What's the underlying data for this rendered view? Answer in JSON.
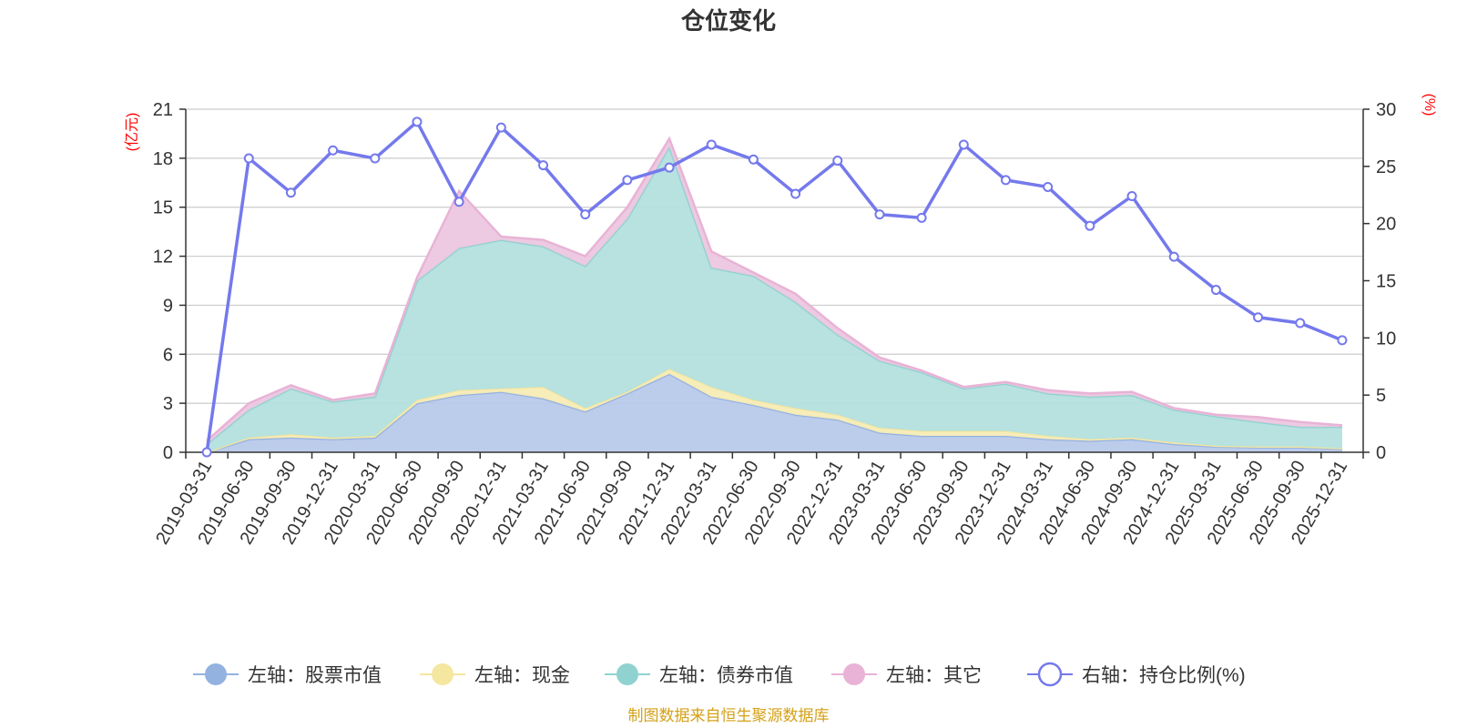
{
  "chart_data": {
    "type": "area",
    "title": "仓位变化",
    "left_unit": "(亿元)",
    "right_unit": "(%)",
    "source": "制图数据来自恒生聚源数据库",
    "categories": [
      "2019-03-31",
      "2019-06-30",
      "2019-09-30",
      "2019-12-31",
      "2020-03-31",
      "2020-06-30",
      "2020-09-30",
      "2020-12-31",
      "2021-03-31",
      "2021-06-30",
      "2021-09-30",
      "2021-12-31",
      "2022-03-31",
      "2022-06-30",
      "2022-09-30",
      "2022-12-31",
      "2023-03-31",
      "2023-06-30",
      "2023-09-30",
      "2023-12-31",
      "2024-03-31",
      "2024-06-30",
      "2024-09-30",
      "2024-12-31",
      "2025-03-31",
      "2025-06-30",
      "2025-09-30",
      "2025-12-31"
    ],
    "left_axis": {
      "min": 0,
      "max": 21,
      "ticks": [
        0,
        3,
        6,
        9,
        12,
        15,
        18,
        21
      ]
    },
    "right_axis": {
      "min": 0,
      "max": 30,
      "ticks": [
        0,
        5,
        10,
        15,
        20,
        25,
        30
      ]
    },
    "series": [
      {
        "name": "左轴：股票市值",
        "axis": "left",
        "color": "#94b2e0",
        "fill": "#b8c9ea",
        "values": [
          0.0,
          0.8,
          0.9,
          0.8,
          0.9,
          3.0,
          3.5,
          3.7,
          3.3,
          2.5,
          3.6,
          4.8,
          3.4,
          2.9,
          2.3,
          2.0,
          1.2,
          1.0,
          1.0,
          1.0,
          0.8,
          0.7,
          0.8,
          0.5,
          0.35,
          0.3,
          0.3,
          0.2
        ]
      },
      {
        "name": "左轴：现金",
        "axis": "left",
        "color": "#f5e6a0",
        "fill": "#f7ecb5",
        "values": [
          0.0,
          0.1,
          0.2,
          0.1,
          0.1,
          0.2,
          0.3,
          0.2,
          0.7,
          0.2,
          0.1,
          0.3,
          0.6,
          0.3,
          0.4,
          0.3,
          0.3,
          0.3,
          0.3,
          0.3,
          0.2,
          0.1,
          0.1,
          0.1,
          0.05,
          0.05,
          0.05,
          0.05
        ]
      },
      {
        "name": "左轴：债券市值",
        "axis": "left",
        "color": "#8fd2d0",
        "fill": "#b3e0de",
        "values": [
          0.5,
          1.7,
          2.8,
          2.2,
          2.4,
          7.3,
          8.7,
          9.1,
          8.6,
          8.7,
          10.6,
          13.6,
          7.3,
          7.6,
          6.5,
          4.9,
          4.1,
          3.6,
          2.6,
          2.9,
          2.6,
          2.6,
          2.6,
          2.0,
          1.8,
          1.5,
          1.2,
          1.3
        ]
      },
      {
        "name": "左轴：其它",
        "axis": "left",
        "color": "#e8b3d6",
        "fill": "#ecc7e0",
        "values": [
          0.2,
          0.4,
          0.2,
          0.1,
          0.2,
          0.2,
          3.5,
          0.2,
          0.4,
          0.6,
          0.7,
          0.5,
          1.0,
          0.2,
          0.5,
          0.4,
          0.2,
          0.1,
          0.1,
          0.1,
          0.2,
          0.2,
          0.2,
          0.1,
          0.1,
          0.3,
          0.3,
          0.1
        ]
      },
      {
        "name": "右轴：持仓比例(%)",
        "axis": "right",
        "color": "#7479ec",
        "values": [
          0.0,
          25.7,
          22.7,
          26.4,
          25.7,
          28.9,
          21.9,
          28.4,
          25.1,
          20.8,
          23.8,
          24.9,
          26.9,
          25.6,
          22.6,
          25.5,
          20.8,
          20.5,
          26.9,
          23.8,
          23.2,
          19.8,
          22.4,
          17.1,
          14.2,
          11.8,
          11.3,
          9.8
        ]
      }
    ]
  }
}
